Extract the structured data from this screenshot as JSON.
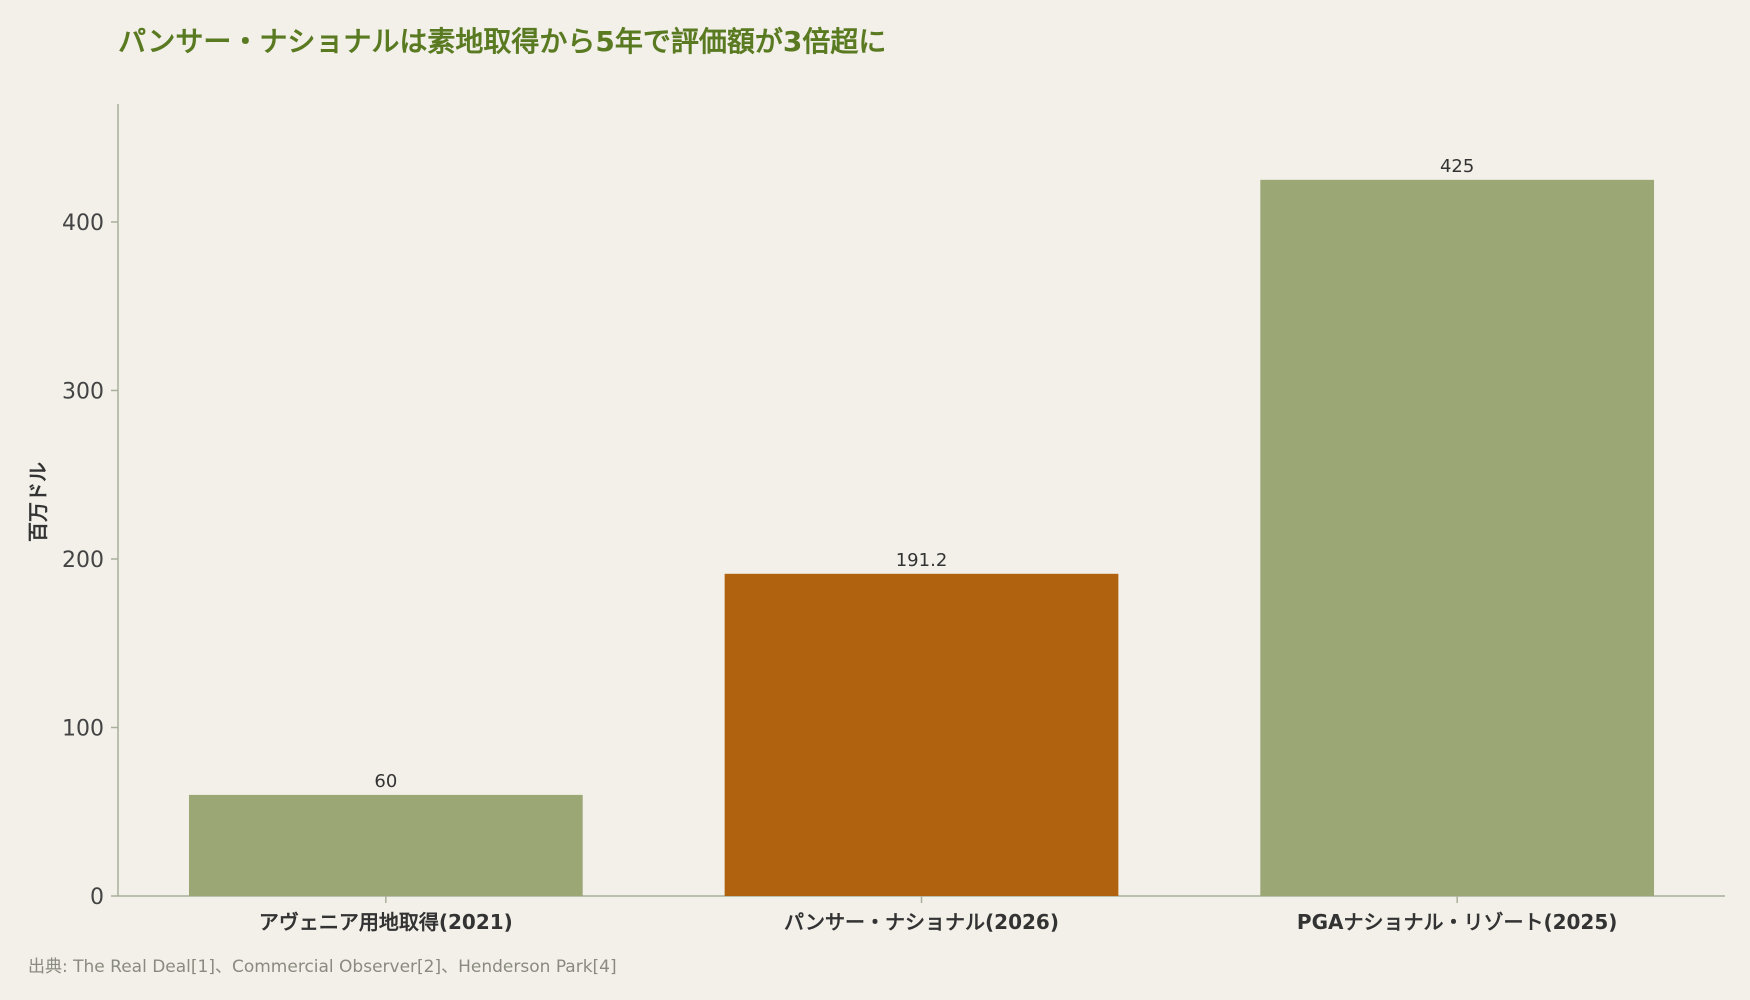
{
  "title": "パンサー・ナショナルは素地取得から5年で評価額が3倍超に",
  "source": "出典: The Real Deal[1]、Commercial Observer[2]、Henderson Park[4]",
  "chart_data": {
    "type": "bar",
    "categories": [
      "アヴェニア用地取得(2021)",
      "パンサー・ナショナル(2026)",
      "PGAナショナル・リゾート(2025)"
    ],
    "values": [
      60,
      191.2,
      425
    ],
    "value_labels": [
      "60",
      "191.2",
      "425"
    ],
    "bar_colors": [
      "#9ba876",
      "#b0620f",
      "#9ba876"
    ],
    "ylabel": "百万ドル",
    "xlabel": "",
    "ylim": [
      0,
      470
    ],
    "yticks": [
      0,
      100,
      200,
      300,
      400
    ],
    "grid": false,
    "colors": {
      "title": "#5a7a22",
      "axis": "#a8b09a",
      "background": "#f3f0e9"
    }
  }
}
